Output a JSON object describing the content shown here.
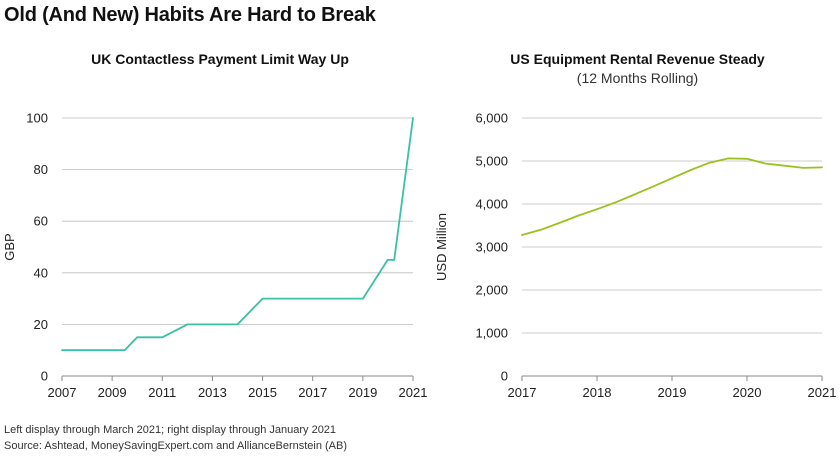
{
  "main_title": "Old (And New) Habits Are Hard to Break",
  "colors": {
    "left_line": "#3bbfa6",
    "right_line": "#9ac21f",
    "grid": "#bdbdbd",
    "axis": "#8a8a8a"
  },
  "chart_data": [
    {
      "type": "line",
      "title": "UK Contactless Payment Limit Way Up",
      "ylabel": "GBP",
      "xlabel": "",
      "xlim": [
        2007,
        2021
      ],
      "ylim": [
        0,
        100
      ],
      "x_ticks": [
        2007,
        2009,
        2011,
        2013,
        2015,
        2017,
        2019,
        2021
      ],
      "y_ticks": [
        0,
        20,
        40,
        60,
        80,
        100
      ],
      "x_tick_labels": [
        "2007",
        "2009",
        "2011",
        "2013",
        "2015",
        "2017",
        "2019",
        "2021"
      ],
      "y_tick_labels": [
        "0",
        "20",
        "40",
        "60",
        "80",
        "100"
      ],
      "series": [
        {
          "name": "UK Contactless Payment Limit",
          "x": [
            2007,
            2009,
            2009.5,
            2010,
            2010.5,
            2011,
            2012,
            2013,
            2014,
            2015,
            2016,
            2017,
            2018,
            2019,
            2019.99,
            2020.25,
            2021
          ],
          "y": [
            10,
            10,
            10,
            15,
            15,
            15,
            20,
            20,
            20,
            30,
            30,
            30,
            30,
            30,
            45,
            45,
            100
          ]
        }
      ],
      "grid": true
    },
    {
      "type": "line",
      "title": "US Equipment Rental Revenue Steady",
      "subtitle": "(12 Months Rolling)",
      "ylabel": "USD Million",
      "xlabel": "",
      "xlim": [
        2017,
        2021
      ],
      "ylim": [
        0,
        6000
      ],
      "x_ticks": [
        2017,
        2018,
        2019,
        2020,
        2021
      ],
      "y_ticks": [
        0,
        1000,
        2000,
        3000,
        4000,
        5000,
        6000
      ],
      "x_tick_labels": [
        "2017",
        "2018",
        "2019",
        "2020",
        "2021"
      ],
      "y_tick_labels": [
        "0",
        "1,000",
        "2,000",
        "3,000",
        "4,000",
        "5,000",
        "6,000"
      ],
      "series": [
        {
          "name": "US Equipment Rental Revenue",
          "x": [
            2017,
            2017.25,
            2017.5,
            2017.75,
            2018,
            2018.25,
            2018.5,
            2018.75,
            2019,
            2019.25,
            2019.5,
            2019.75,
            2020,
            2020.25,
            2020.5,
            2020.75,
            2021
          ],
          "y": [
            3280,
            3400,
            3560,
            3730,
            3880,
            4040,
            4220,
            4410,
            4600,
            4790,
            4960,
            5060,
            5050,
            4940,
            4890,
            4840,
            4850
          ]
        }
      ],
      "grid": true
    }
  ],
  "footnotes": [
    "Left display through March 2021; right display through January 2021",
    "Source: Ashtead, MoneySavingExpert.com and AllianceBernstein (AB)"
  ]
}
